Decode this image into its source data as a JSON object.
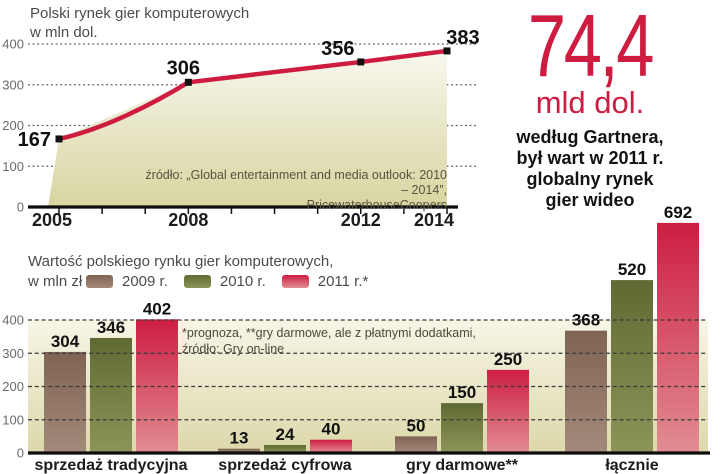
{
  "top_chart": {
    "title_line1": "Polski rynek gier komputerowych",
    "title_line2": "w mln dol.",
    "source_line1": "źródło: „Global entertainment and media outlook: 2010 – 2014”,",
    "source_line2": "PricewaterhouseCoopers"
  },
  "callout": {
    "big_number": "74,4",
    "big_unit": "mld dol.",
    "desc_lines": [
      "według Gartnera,",
      "był wart w 2011 r.",
      "globalny rynek",
      "gier wideo"
    ]
  },
  "bottom_chart": {
    "title_line1": "Wartość polskiego rynku gier komputerowych,",
    "title_line2": "w mln zł",
    "footnote_line1": "*prognoza, **gry darmowe, ale z płatnymi dodatkami,",
    "footnote_line2": "źródło: Gry on-line"
  },
  "colors": {
    "accent_red": "#ce1c40",
    "area_top": "#f8f7ee",
    "area_bottom": "#d8d5a0",
    "plot_bg_top": "#f7f5e6",
    "plot_bg_bottom": "#dcd8aa",
    "marker_black": "#111111"
  },
  "chart_data": [
    {
      "type": "line",
      "title": "Polski rynek gier komputerowych w mln dol.",
      "x": [
        2005,
        2008,
        2012,
        2014
      ],
      "values": [
        167,
        306,
        356,
        383
      ],
      "x_tick_labels": [
        "2005",
        "2008",
        "2012",
        "2014"
      ],
      "x_range": [
        2005,
        2014
      ],
      "ylim": [
        0,
        400
      ],
      "y_ticks": [
        0,
        100,
        200,
        300,
        400
      ],
      "grid": "dotted",
      "line_color": "#ce1c40",
      "marker": "black-square",
      "area_fill": true,
      "source": "źródło: „Global entertainment and media outlook: 2010 – 2014”, PricewaterhouseCoopers"
    },
    {
      "type": "bar",
      "title": "Wartość polskiego rynku gier komputerowych, w mln zł",
      "categories": [
        "sprzedaż tradycyjna",
        "sprzedaż cyfrowa",
        "gry darmowe**",
        "łącznie"
      ],
      "series": [
        {
          "name": "2009 r.",
          "color_top": "#7f6353",
          "color_bottom": "#a48a7a",
          "values": [
            304,
            13,
            50,
            368
          ]
        },
        {
          "name": "2010 r.",
          "color_top": "#5f6a33",
          "color_bottom": "#8d9458",
          "values": [
            346,
            24,
            150,
            520
          ]
        },
        {
          "name": "2011 r.*",
          "color_top": "#cd1d42",
          "color_bottom": "#e18d92",
          "values": [
            402,
            40,
            250,
            692
          ]
        }
      ],
      "ylim": [
        0,
        400
      ],
      "y_ticks": [
        0,
        100,
        200,
        300,
        400
      ],
      "grid": "dashed",
      "legend_position": "top",
      "note": "*prognoza, **gry darmowe, ale z płatnymi dodatkami, źródło: Gry on-line"
    }
  ]
}
